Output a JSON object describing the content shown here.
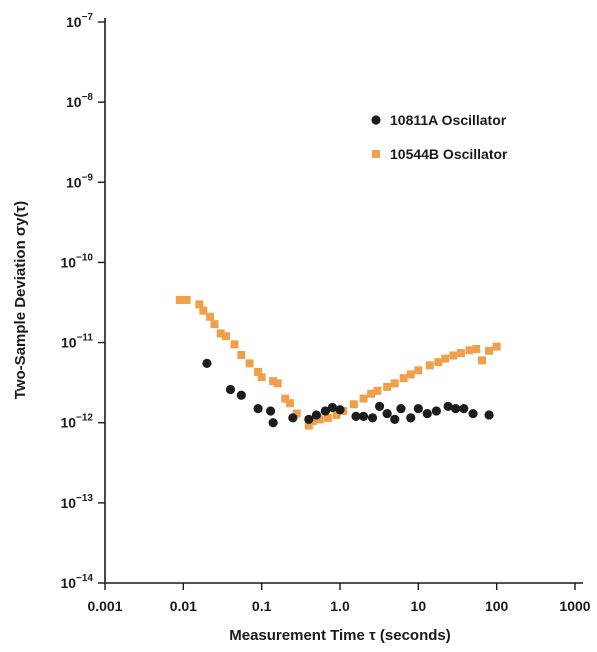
{
  "chart_data": {
    "type": "scatter",
    "title": "",
    "xlabel": "Measurement Time τ (seconds)",
    "ylabel": "Two-Sample Deviation σy(τ)",
    "x_scale": "log",
    "y_scale": "log",
    "xlim": [
      0.001,
      1000
    ],
    "ylim": [
      1e-14,
      1e-07
    ],
    "grid": false,
    "legend_position": "top-right",
    "x_ticks": [
      {
        "value": 0.001,
        "label": "0.001"
      },
      {
        "value": 0.01,
        "label": "0.01"
      },
      {
        "value": 0.1,
        "label": "0.1"
      },
      {
        "value": 1,
        "label": "1.0"
      },
      {
        "value": 10,
        "label": "10"
      },
      {
        "value": 100,
        "label": "100"
      },
      {
        "value": 1000,
        "label": "1000"
      }
    ],
    "y_ticks": [
      {
        "value": 1e-07,
        "base": "10",
        "exp": "−7"
      },
      {
        "value": 1e-08,
        "base": "10",
        "exp": "−8"
      },
      {
        "value": 1e-09,
        "base": "10",
        "exp": "−9"
      },
      {
        "value": 1e-10,
        "base": "10",
        "exp": "−10"
      },
      {
        "value": 1e-11,
        "base": "10",
        "exp": "−11"
      },
      {
        "value": 1e-12,
        "base": "10",
        "exp": "−12"
      },
      {
        "value": 1e-13,
        "base": "10",
        "exp": "−13"
      },
      {
        "value": 1e-14,
        "base": "10",
        "exp": "−14"
      }
    ],
    "series": [
      {
        "name": "10811A Oscillator",
        "marker": "circle",
        "color": "#1c1c1c",
        "points": [
          [
            0.02,
            5.5e-12
          ],
          [
            0.04,
            2.6e-12
          ],
          [
            0.055,
            2.2e-12
          ],
          [
            0.09,
            1.5e-12
          ],
          [
            0.13,
            1.4e-12
          ],
          [
            0.14,
            1e-12
          ],
          [
            0.25,
            1.15e-12
          ],
          [
            0.4,
            1.1e-12
          ],
          [
            0.5,
            1.25e-12
          ],
          [
            0.65,
            1.4e-12
          ],
          [
            0.8,
            1.55e-12
          ],
          [
            1.0,
            1.45e-12
          ],
          [
            1.6,
            1.2e-12
          ],
          [
            2.0,
            1.2e-12
          ],
          [
            2.6,
            1.15e-12
          ],
          [
            3.2,
            1.6e-12
          ],
          [
            4.0,
            1.3e-12
          ],
          [
            5.0,
            1.1e-12
          ],
          [
            6.0,
            1.5e-12
          ],
          [
            8.0,
            1.15e-12
          ],
          [
            10,
            1.5e-12
          ],
          [
            13,
            1.3e-12
          ],
          [
            17,
            1.4e-12
          ],
          [
            24,
            1.6e-12
          ],
          [
            30,
            1.5e-12
          ],
          [
            38,
            1.5e-12
          ],
          [
            50,
            1.3e-12
          ],
          [
            80,
            1.25e-12
          ]
        ]
      },
      {
        "name": "10544B Oscillator",
        "marker": "square",
        "color": "#f0a04b",
        "points": [
          [
            0.009,
            3.4e-11
          ],
          [
            0.011,
            3.4e-11
          ],
          [
            0.016,
            3e-11
          ],
          [
            0.018,
            2.5e-11
          ],
          [
            0.022,
            2.1e-11
          ],
          [
            0.025,
            1.7e-11
          ],
          [
            0.03,
            1.3e-11
          ],
          [
            0.035,
            1.2e-11
          ],
          [
            0.045,
            9.5e-12
          ],
          [
            0.055,
            7e-12
          ],
          [
            0.07,
            5.5e-12
          ],
          [
            0.09,
            4.3e-12
          ],
          [
            0.1,
            3.7e-12
          ],
          [
            0.14,
            3.3e-12
          ],
          [
            0.16,
            3.1e-12
          ],
          [
            0.2,
            2e-12
          ],
          [
            0.23,
            1.75e-12
          ],
          [
            0.28,
            1.3e-12
          ],
          [
            0.4,
            9.2e-13
          ],
          [
            0.45,
            1.05e-12
          ],
          [
            0.55,
            1.1e-12
          ],
          [
            0.7,
            1.15e-12
          ],
          [
            0.9,
            1.25e-12
          ],
          [
            1.1,
            1.4e-12
          ],
          [
            1.5,
            1.7e-12
          ],
          [
            2.0,
            2e-12
          ],
          [
            2.5,
            2.3e-12
          ],
          [
            3.0,
            2.5e-12
          ],
          [
            4.0,
            2.8e-12
          ],
          [
            5.0,
            3.1e-12
          ],
          [
            6.5,
            3.6e-12
          ],
          [
            8.0,
            4e-12
          ],
          [
            10,
            4.5e-12
          ],
          [
            14,
            5.2e-12
          ],
          [
            18,
            5.7e-12
          ],
          [
            22,
            6.3e-12
          ],
          [
            28,
            6.9e-12
          ],
          [
            35,
            7.4e-12
          ],
          [
            45,
            8e-12
          ],
          [
            55,
            8.3e-12
          ],
          [
            65,
            6e-12
          ],
          [
            80,
            7.9e-12
          ],
          [
            100,
            8.9e-12
          ]
        ]
      }
    ]
  }
}
